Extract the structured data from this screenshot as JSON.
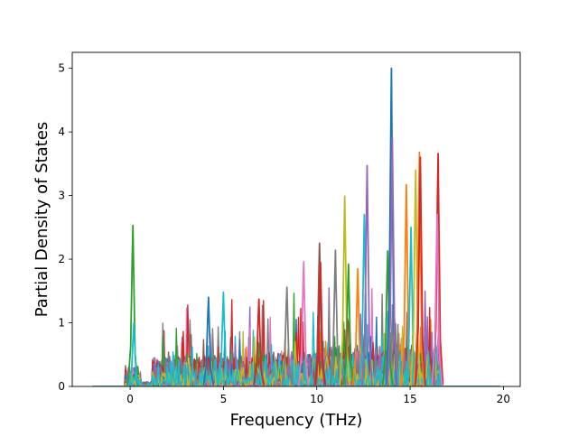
{
  "chart_data": {
    "type": "line",
    "title": "",
    "xlabel": "Frequency (THz)",
    "ylabel": "Partial Density of States",
    "xlim": [
      -3.1,
      20.9
    ],
    "ylim": [
      0,
      5.25
    ],
    "xticks": [
      0,
      5,
      10,
      15,
      20
    ],
    "yticks": [
      0,
      1,
      2,
      3,
      4,
      5
    ],
    "grid": false,
    "legend": "none",
    "series_count_approx": 80,
    "curve_x_range": [
      -2.0,
      19.8
    ],
    "highlighted_peaks": [
      {
        "x": 0.15,
        "y": 2.53,
        "color": "#2ca02c"
      },
      {
        "x": 0.2,
        "y": 1.0,
        "color": "#17becf"
      },
      {
        "x": 4.2,
        "y": 1.4,
        "color": "#1f77b4"
      },
      {
        "x": 5.0,
        "y": 1.48,
        "color": "#17becf"
      },
      {
        "x": 6.9,
        "y": 1.37,
        "color": "#d62728"
      },
      {
        "x": 8.4,
        "y": 1.56,
        "color": "#7f7f7f"
      },
      {
        "x": 9.3,
        "y": 1.96,
        "color": "#e377c2"
      },
      {
        "x": 10.15,
        "y": 2.25,
        "color": "#8c564b"
      },
      {
        "x": 10.2,
        "y": 1.95,
        "color": "#d62728"
      },
      {
        "x": 11.0,
        "y": 2.14,
        "color": "#7f7f7f"
      },
      {
        "x": 11.5,
        "y": 2.99,
        "color": "#bcbd22"
      },
      {
        "x": 11.7,
        "y": 1.92,
        "color": "#2ca02c"
      },
      {
        "x": 12.2,
        "y": 1.85,
        "color": "#ff7f0e"
      },
      {
        "x": 12.55,
        "y": 2.7,
        "color": "#17becf"
      },
      {
        "x": 12.7,
        "y": 3.47,
        "color": "#9467bd"
      },
      {
        "x": 13.8,
        "y": 2.13,
        "color": "#2ca02c"
      },
      {
        "x": 14.0,
        "y": 5.0,
        "color": "#1f77b4"
      },
      {
        "x": 14.05,
        "y": 3.9,
        "color": "#9467bd"
      },
      {
        "x": 14.8,
        "y": 3.17,
        "color": "#ff7f0e"
      },
      {
        "x": 15.05,
        "y": 2.5,
        "color": "#17becf"
      },
      {
        "x": 15.3,
        "y": 3.4,
        "color": "#bcbd22"
      },
      {
        "x": 15.5,
        "y": 3.68,
        "color": "#ff7f0e"
      },
      {
        "x": 15.55,
        "y": 3.6,
        "color": "#d62728"
      },
      {
        "x": 16.5,
        "y": 3.66,
        "color": "#d62728"
      },
      {
        "x": 16.45,
        "y": 2.7,
        "color": "#e377c2"
      }
    ]
  },
  "palette": [
    "#1f77b4",
    "#ff7f0e",
    "#2ca02c",
    "#d62728",
    "#9467bd",
    "#8c564b",
    "#e377c2",
    "#7f7f7f",
    "#bcbd22",
    "#17becf"
  ]
}
